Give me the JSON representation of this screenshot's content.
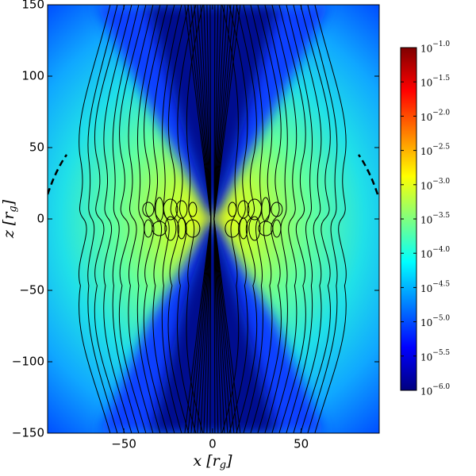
{
  "chart_data": {
    "type": "heatmap",
    "xlabel": "x [rg]",
    "ylabel": "z [rg]",
    "xlim": [
      -93,
      94
    ],
    "ylim": [
      -150,
      150
    ],
    "xticks": [
      {
        "value": -50,
        "label": "−50"
      },
      0,
      50
    ],
    "yticks": [
      {
        "value": -150,
        "label": "−150"
      },
      {
        "value": -100,
        "label": "−100"
      },
      {
        "value": -50,
        "label": "−50"
      },
      0,
      50,
      100,
      150
    ],
    "colormap": "jet",
    "colorbar_scale": "log",
    "colorbar_lim": [
      1e-06,
      0.1
    ],
    "colorbar_ticks": [
      {
        "value": 1e-06,
        "label": "10−6.0"
      },
      {
        "value": 3.1623e-06,
        "label": "10−5.5"
      },
      {
        "value": 1e-05,
        "label": "10−5.0"
      },
      {
        "value": 3.1623e-05,
        "label": "10−4.5"
      },
      {
        "value": 0.0001,
        "label": "10−4.0"
      },
      {
        "value": 0.00031623,
        "label": "10−3.5"
      },
      {
        "value": 0.001,
        "label": "10−3.0"
      },
      {
        "value": 0.0031623,
        "label": "10−2.5"
      },
      {
        "value": 0.01,
        "label": "10−2.0"
      },
      {
        "value": 0.031623,
        "label": "10−1.5"
      },
      {
        "value": 0.1,
        "label": "10−1.0"
      }
    ]
  }
}
